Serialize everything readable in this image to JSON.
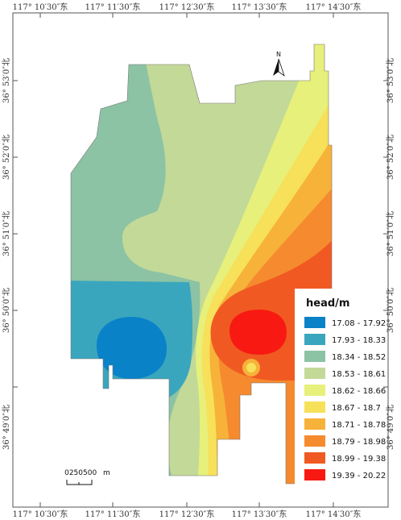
{
  "map": {
    "lon_ticks": [
      "117° 10′30″东",
      "117° 11′30″东",
      "117° 12′30″东",
      "117° 13′30″东",
      "117° 14′30″东"
    ],
    "lat_ticks": [
      "36° 53′0″北",
      "36° 52′0″北",
      "36° 51′0″北",
      "36° 50′0″北",
      "36° 49′0″北"
    ],
    "north_label": "N",
    "scale_bar": {
      "labels": [
        "0",
        "250500",
        "m"
      ]
    },
    "legend": {
      "title": "head/m",
      "classes": [
        {
          "label": "17.08 - 17.92",
          "color": "#0a82c8"
        },
        {
          "label": "17.93 - 18.33",
          "color": "#3aa6bd"
        },
        {
          "label": "18.34 - 18.52",
          "color": "#8cc3a4"
        },
        {
          "label": "18.53 - 18.61",
          "color": "#c3d998"
        },
        {
          "label": "18.62 - 18.66",
          "color": "#e6f07a"
        },
        {
          "label": "18.67 - 18.7",
          "color": "#f7e05a"
        },
        {
          "label": "18.71 - 18.78",
          "color": "#f7b23a"
        },
        {
          "label": "18.79 - 18.98",
          "color": "#f68a2e"
        },
        {
          "label": "18.99 - 19.38",
          "color": "#f05a22"
        },
        {
          "label": "19.39 - 20.22",
          "color": "#f81a12"
        }
      ]
    }
  }
}
